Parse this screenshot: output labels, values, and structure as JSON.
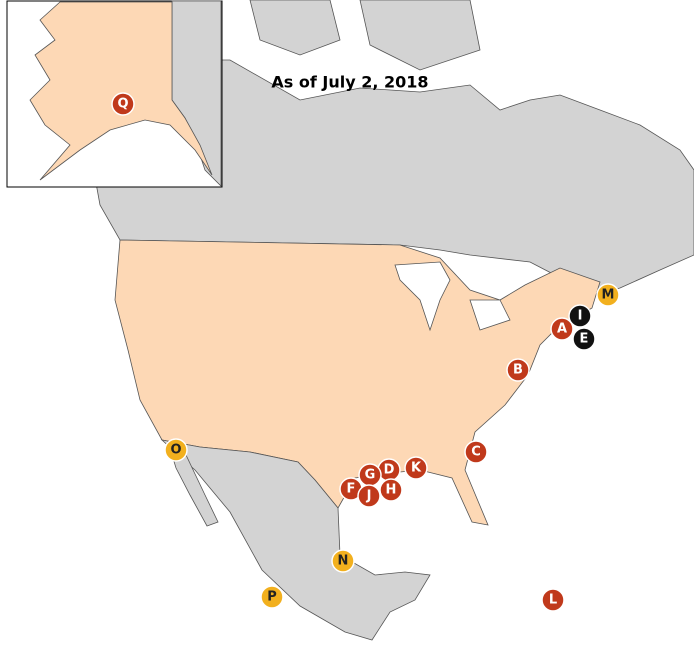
{
  "title": "As of July 2, 2018",
  "markers": [
    {
      "label": "Q",
      "color": "#c0391b"
    },
    {
      "label": "M",
      "color": "#f2b01e"
    },
    {
      "label": "I",
      "color": "#111111"
    },
    {
      "label": "A",
      "color": "#c0391b"
    },
    {
      "label": "E",
      "color": "#111111"
    },
    {
      "label": "B",
      "color": "#c0391b"
    },
    {
      "label": "C",
      "color": "#c0391b"
    },
    {
      "label": "O",
      "color": "#f2b01e"
    },
    {
      "label": "K",
      "color": "#c0391b"
    },
    {
      "label": "D",
      "color": "#c0391b"
    },
    {
      "label": "G",
      "color": "#c0391b"
    },
    {
      "label": "H",
      "color": "#c0391b"
    },
    {
      "label": "F",
      "color": "#c0391b"
    },
    {
      "label": "J",
      "color": "#c0391b"
    },
    {
      "label": "N",
      "color": "#f2b01e"
    },
    {
      "label": "P",
      "color": "#f2b01e"
    },
    {
      "label": "L",
      "color": "#c0391b"
    }
  ]
}
